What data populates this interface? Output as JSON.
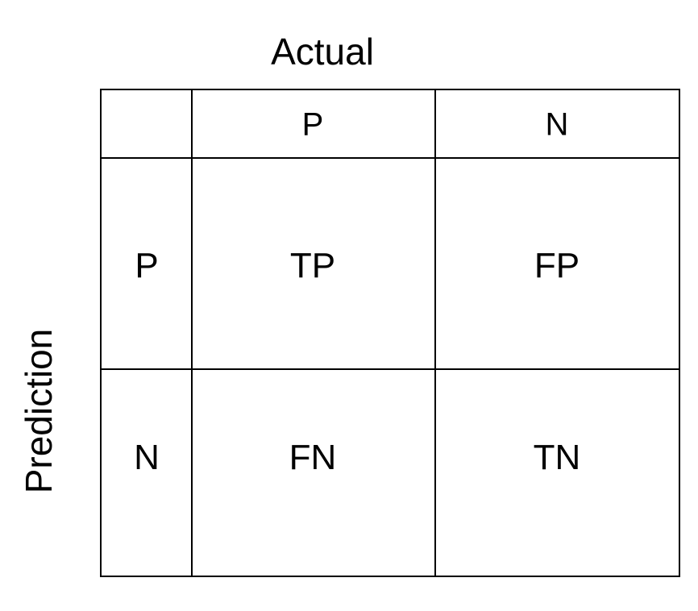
{
  "axis_labels": {
    "actual": "Actual",
    "prediction": "Prediction"
  },
  "column_headers": [
    "P",
    "N"
  ],
  "row_headers": [
    "P",
    "N"
  ],
  "cells": [
    [
      "TP",
      "FP"
    ],
    [
      "FN",
      "TN"
    ]
  ]
}
